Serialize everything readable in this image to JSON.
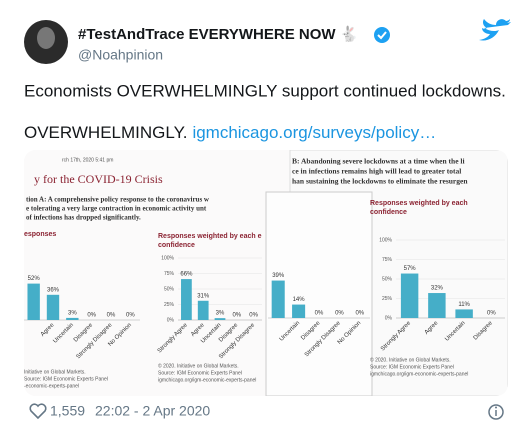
{
  "tweet": {
    "name": "#TestAndTrace EVERYWHERE NOW 🐇",
    "handle": "@Noahpinion",
    "text_lines": [
      "Economists OVERWHELMINGLY support continued lockdowns."
    ],
    "text_prefix": "OVERWHELMINGLY.",
    "link": "igmchicago.org/surveys/policy…",
    "likes": "1,559",
    "timestamp": "22:02 - 2 Apr 2020"
  },
  "image": {
    "left_panel": {
      "date": "rch 17th, 2020 5:41 pm",
      "heading": "y for the COVID-19 Crisis",
      "question": [
        "tion A: A comprehensive policy response to the coronavirus w",
        "e tolerating a very large contraction in economic activity unt",
        "of infections has dropped significantly."
      ]
    },
    "right_panel": {
      "question": [
        "B: Abandoning severe lockdowns at a time when the li",
        "ce in infections remains high will lead to greater total",
        "han sustaining the lockdowns to eliminate the resurgen"
      ]
    },
    "charts": [
      {
        "type": "bar",
        "title": [
          "esponses"
        ],
        "ylim": [
          0,
          100
        ],
        "categories": [
          null,
          "Agree",
          "Uncertain",
          "Disagree",
          "Strongly Disagree",
          "No Opinion"
        ],
        "values": [
          52,
          36,
          3,
          0,
          0,
          0
        ],
        "value_labels": [
          "52%",
          "36%",
          "3%",
          "0%",
          "0%",
          "0%"
        ],
        "color": "#45aec8",
        "footer": [
          "Initiative on Global Markets.",
          "Source: IGM Economic Experts Panel",
          "-economic-experts-panel"
        ]
      },
      {
        "type": "bar",
        "title": [
          "Responses weighted by each e",
          "confidence"
        ],
        "ylim": [
          0,
          100
        ],
        "yticks": [
          {
            "value": 0,
            "label": "0%"
          },
          {
            "value": 25,
            "label": "25%"
          },
          {
            "value": 50,
            "label": "50%"
          },
          {
            "value": 75,
            "label": "75%"
          },
          {
            "value": 100,
            "label": "100%"
          }
        ],
        "categories": [
          "Strongly Agree",
          "Agree",
          "Uncertain",
          "Disagree",
          "Strongly Disagree"
        ],
        "values": [
          66,
          31,
          3,
          0,
          0
        ],
        "value_labels": [
          "66%",
          "31%",
          "3%",
          "0%",
          "0%"
        ],
        "color": "#45aec8",
        "footer": [
          "© 2020. Initiative on Global Markets.",
          "Source: IGM Economic Experts Panel",
          "igmchicago.org/igm-economic-experts-panel"
        ]
      },
      {
        "type": "bar",
        "title": [],
        "ylim": [
          0,
          100
        ],
        "categories": [
          null,
          "Uncertain",
          "Disagree",
          "Strongly Disagree",
          "No Opinion"
        ],
        "values": [
          39,
          14,
          0,
          0,
          0
        ],
        "value_labels": [
          "39%",
          "14%",
          "0%",
          "0%",
          "0%"
        ],
        "color": "#45aec8",
        "footer": []
      },
      {
        "type": "bar",
        "title": [
          "Responses weighted by each",
          "confidence"
        ],
        "ylim": [
          0,
          100
        ],
        "yticks": [
          {
            "value": 0,
            "label": "0%"
          },
          {
            "value": 25,
            "label": "25%"
          },
          {
            "value": 50,
            "label": "50%"
          },
          {
            "value": 75,
            "label": "75%"
          },
          {
            "value": 100,
            "label": "100%"
          }
        ],
        "categories": [
          "Strongly Agree",
          "Agree",
          "Uncertain",
          "Disagree"
        ],
        "values": [
          57,
          32,
          11,
          0
        ],
        "value_labels": [
          "57%",
          "32%",
          "11%",
          "0%"
        ],
        "color": "#45aec8",
        "footer": [
          "© 2020. Initiative on Global Markets.",
          "Source: IGM Economic Experts Panel",
          "igmchicago.org/igm-economic-experts-panel"
        ]
      }
    ]
  }
}
